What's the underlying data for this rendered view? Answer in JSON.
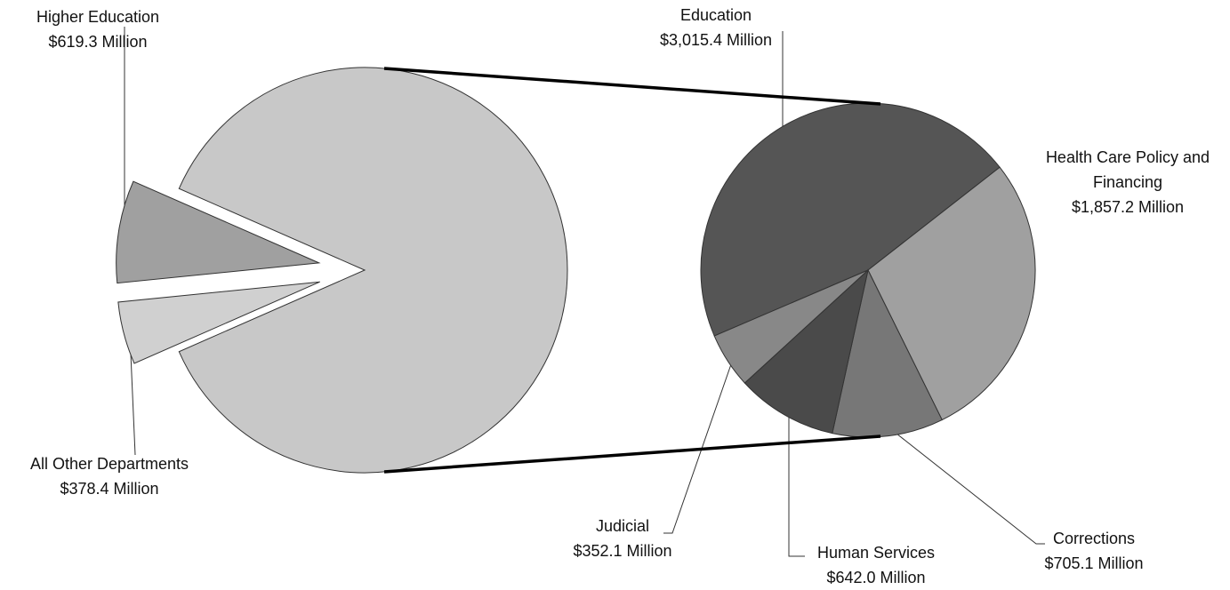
{
  "chart_data": {
    "type": "pie",
    "categories": [
      "Higher Education",
      "All Other Departments"
    ],
    "values": [
      619.3,
      378.4
    ],
    "value_labels": [
      "$619.3 Million",
      "$378.4 Million"
    ],
    "colors": [
      "#a0a0a0",
      "#d0d0d0"
    ],
    "other_color": "#c8c8c8",
    "secondary": {
      "categories": [
        "Education",
        "Health Care Policy and Financing",
        "Corrections",
        "Human Services",
        "Judicial"
      ],
      "values": [
        3015.4,
        1857.2,
        705.1,
        642.0,
        352.1
      ],
      "value_labels": [
        "$3,015.4 Million",
        "$1,857.2 Million",
        "$705.1 Million",
        "$642.0 Million",
        "$352.1 Million"
      ],
      "colors": [
        "#555555",
        "#a0a0a0",
        "#777777",
        "#4a4a4a",
        "#888888"
      ]
    }
  }
}
